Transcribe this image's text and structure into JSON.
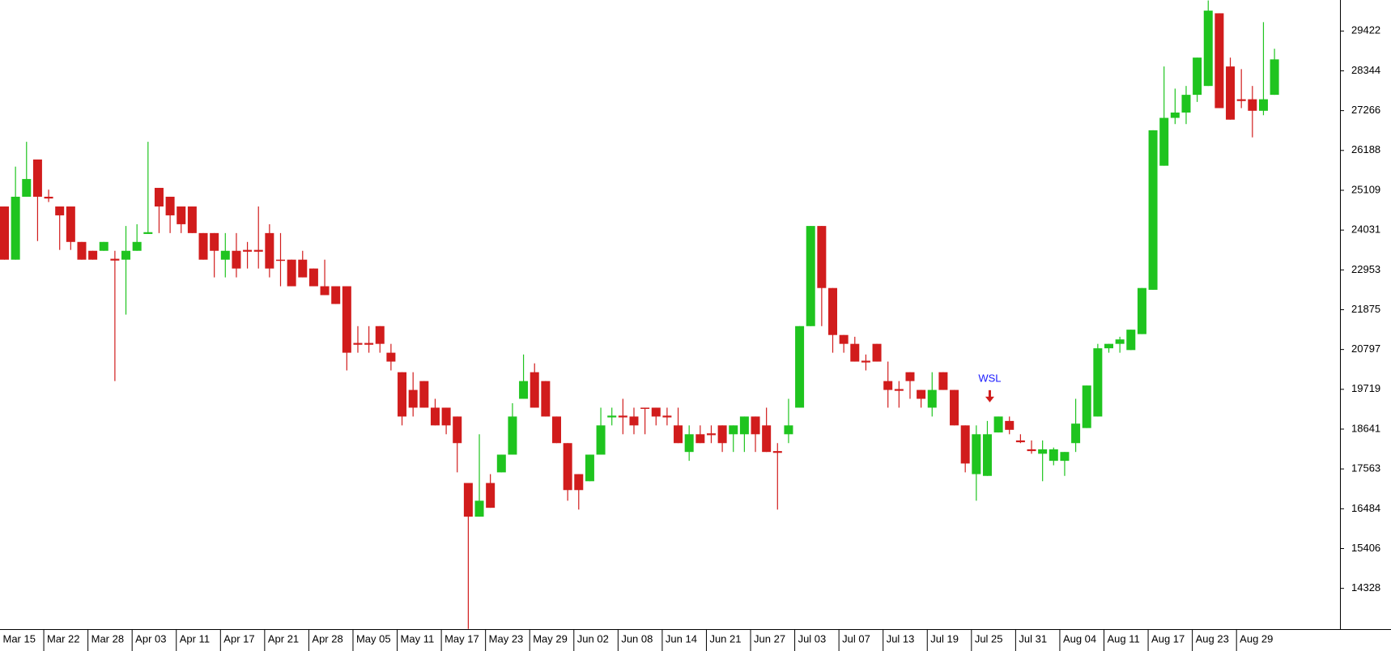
{
  "chart_data": {
    "type": "candlestick",
    "categories": [
      "Mar 15",
      null,
      null,
      null,
      "Mar 22",
      null,
      null,
      null,
      "Mar 28",
      null,
      null,
      null,
      "Apr 03",
      null,
      null,
      null,
      "Apr 11",
      null,
      null,
      null,
      "Apr 17",
      null,
      null,
      null,
      "Apr 21",
      null,
      null,
      null,
      "Apr 28",
      null,
      null,
      null,
      "May 05",
      null,
      null,
      null,
      "May 11",
      null,
      null,
      null,
      "May 17",
      null,
      null,
      null,
      "May 23",
      null,
      null,
      null,
      "May 29",
      null,
      null,
      null,
      "Jun 02",
      null,
      null,
      null,
      "Jun 08",
      null,
      null,
      null,
      "Jun 14",
      null,
      null,
      null,
      "Jun 21",
      null,
      null,
      null,
      "Jun 27",
      null,
      null,
      null,
      "Jul 03",
      null,
      null,
      null,
      "Jul 07",
      null,
      null,
      null,
      "Jul 13",
      null,
      null,
      null,
      "Jul 19",
      null,
      null,
      null,
      "Jul 25",
      null,
      null,
      null,
      "Jul 31",
      null,
      null,
      null,
      "Aug 04",
      null,
      null,
      null,
      "Aug 11",
      null,
      null,
      null,
      "Aug 17",
      null,
      null,
      null,
      "Aug 23",
      null,
      null,
      null,
      "Aug 29",
      null,
      null,
      null
    ],
    "open": [
      24670,
      23230,
      24934,
      25942,
      24934,
      24670,
      24670,
      23710,
      23470,
      23470,
      23254,
      23230,
      23470,
      23926,
      25174,
      24934,
      24670,
      24670,
      23950,
      23950,
      23230,
      23470,
      23494,
      23494,
      23950,
      23230,
      23230,
      23230,
      22990,
      22510,
      22510,
      22510,
      20974,
      20974,
      21430,
      20710,
      20182,
      19702,
      19942,
      19222,
      19222,
      18982,
      17182,
      16270,
      17182,
      17470,
      17950,
      19462,
      20182,
      19942,
      18982,
      18262,
      17422,
      17230,
      17950,
      18958,
      19006,
      18982,
      19222,
      19222,
      19006,
      18742,
      18022,
      18502,
      18526,
      18742,
      18502,
      18502,
      18982,
      18742,
      18046,
      18502,
      19222,
      21430,
      24142,
      22462,
      21190,
      20950,
      20494,
      20950,
      19942,
      19726,
      20182,
      19702,
      19222,
      20182,
      19702,
      18742,
      17422,
      17374,
      18550,
      18862,
      18334,
      18094,
      17974,
      17782,
      17782,
      18262,
      18670,
      18982,
      20830,
      20950,
      20782,
      21214,
      22414,
      25774,
      27070,
      27214,
      27694,
      27934,
      29902,
      28462,
      27574,
      27574,
      27262,
      27694
    ],
    "high": [
      24670,
      25750,
      26422,
      25942,
      25126,
      24670,
      24670,
      23710,
      23470,
      23710,
      23470,
      24142,
      24190,
      26422,
      25174,
      24934,
      24670,
      24670,
      23950,
      23950,
      23950,
      23950,
      23710,
      24670,
      24190,
      23950,
      23230,
      23470,
      22990,
      23230,
      22510,
      22510,
      21430,
      21430,
      21430,
      20950,
      20182,
      20182,
      19942,
      19462,
      19222,
      18982,
      17182,
      18502,
      17422,
      17950,
      19342,
      20662,
      20422,
      19942,
      18982,
      18262,
      17422,
      17950,
      19222,
      19222,
      19462,
      19222,
      19222,
      19222,
      19222,
      19222,
      18742,
      18742,
      18742,
      18742,
      18742,
      18982,
      18982,
      19222,
      18262,
      19462,
      21430,
      24142,
      24142,
      22462,
      21190,
      21142,
      20662,
      20950,
      20470,
      19942,
      20182,
      19702,
      20182,
      20182,
      19702,
      18742,
      18742,
      18862,
      18982,
      18982,
      18502,
      18334,
      18334,
      18142,
      18022,
      19462,
      19822,
      20950,
      20950,
      21142,
      21334,
      22462,
      26734,
      28462,
      27862,
      27934,
      28702,
      30250,
      29902,
      28702,
      28390,
      27934,
      29662,
      28942
    ],
    "low": [
      23230,
      23230,
      24934,
      23734,
      24790,
      23494,
      23494,
      23230,
      23230,
      23470,
      19942,
      21742,
      23470,
      23926,
      23950,
      23950,
      23950,
      23950,
      23230,
      22750,
      22750,
      22750,
      22990,
      22990,
      22750,
      22510,
      22510,
      22750,
      22510,
      22270,
      22030,
      20230,
      20710,
      20710,
      20710,
      20230,
      18742,
      18982,
      19222,
      18742,
      18502,
      17470,
      13230,
      16270,
      16510,
      17470,
      17950,
      19462,
      19222,
      18982,
      18262,
      16702,
      16462,
      17230,
      17950,
      18742,
      18502,
      18502,
      18502,
      18742,
      18742,
      18262,
      17782,
      18262,
      18262,
      18022,
      18022,
      18022,
      18022,
      18022,
      16462,
      18262,
      19222,
      21430,
      21430,
      20710,
      20710,
      20470,
      20230,
      20470,
      19222,
      19222,
      19462,
      19222,
      18982,
      19702,
      18742,
      17470,
      16702,
      17374,
      18550,
      18502,
      18262,
      17974,
      17230,
      17662,
      17374,
      18022,
      18670,
      18982,
      20710,
      20710,
      20782,
      21214,
      22414,
      25774,
      26902,
      26902,
      27502,
      27934,
      27334,
      27022,
      27334,
      26542,
      27142,
      27694
    ],
    "close": [
      23230,
      24934,
      25414,
      24934,
      24886,
      24430,
      23710,
      23230,
      23230,
      23710,
      23206,
      23470,
      23710,
      23974,
      24670,
      24430,
      24190,
      23950,
      23230,
      23470,
      23470,
      22990,
      23446,
      23446,
      22990,
      23206,
      22510,
      22750,
      22510,
      22270,
      22030,
      20710,
      20926,
      20926,
      20950,
      20470,
      18982,
      19222,
      19222,
      18742,
      18742,
      18262,
      16270,
      16702,
      16510,
      17950,
      18982,
      19942,
      19222,
      18982,
      18262,
      16990,
      16990,
      17950,
      18742,
      19006,
      18958,
      18742,
      19198,
      18982,
      18958,
      18262,
      18502,
      18262,
      18478,
      18262,
      18742,
      18982,
      18502,
      18022,
      17998,
      18742,
      21430,
      24142,
      22462,
      21190,
      20950,
      20470,
      20446,
      20470,
      19702,
      19678,
      19942,
      19462,
      19702,
      19702,
      18742,
      17710,
      18502,
      18502,
      18982,
      18622,
      18286,
      18046,
      18094,
      18094,
      18022,
      18790,
      19822,
      20830,
      20950,
      21070,
      21334,
      22462,
      26734,
      27070,
      27214,
      27694,
      28702,
      29974,
      27334,
      27022,
      27526,
      27262,
      27574,
      28654
    ],
    "up_color": "#1fc41f",
    "down_color": "#d11c1c",
    "annotation": "WSL",
    "annotation_color": "#1a1aff",
    "ylim": [
      13224,
      30262
    ],
    "yticks": [
      14328,
      15406,
      16484,
      17563,
      18641,
      19719,
      20797,
      21875,
      22953,
      24031,
      25109,
      26188,
      27266,
      28344,
      29422
    ]
  }
}
